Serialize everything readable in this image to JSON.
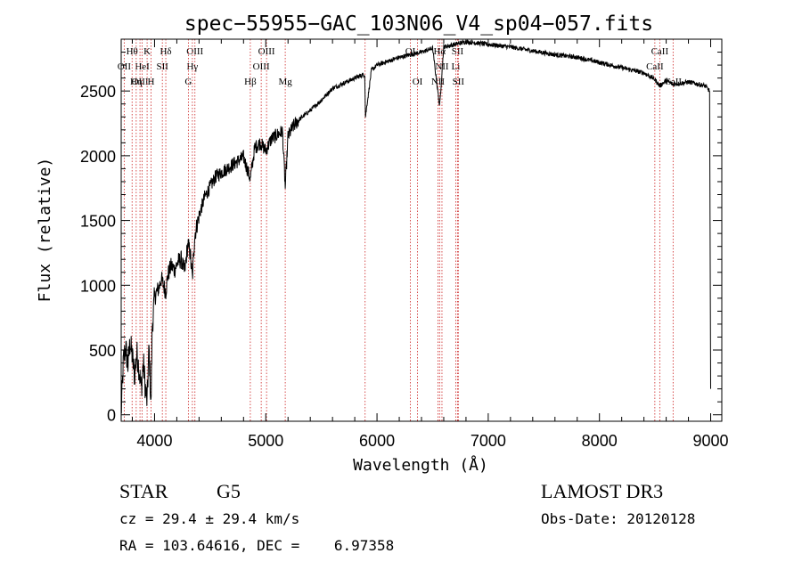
{
  "chart_data": {
    "type": "line",
    "title": "spec−55955−GAC_103N06_V4_sp04−057.fits",
    "xlabel": "Wavelength (Å)",
    "ylabel": "Flux (relative)",
    "xlim": [
      3700,
      9100
    ],
    "ylim": [
      -50,
      2900
    ],
    "grid": false,
    "x_ticks": [
      4000,
      5000,
      6000,
      7000,
      8000,
      9000
    ],
    "x_tick_labels": [
      "4000",
      "5000",
      "6000",
      "7000",
      "8000",
      "9000"
    ],
    "y_ticks": [
      0,
      500,
      1000,
      1500,
      2000,
      2500
    ],
    "y_tick_labels": [
      "0",
      "500",
      "1000",
      "1500",
      "2000",
      "2500"
    ],
    "series": [
      {
        "name": "flux",
        "x": [
          3700,
          3720,
          3740,
          3760,
          3780,
          3800,
          3820,
          3840,
          3860,
          3880,
          3900,
          3920,
          3933,
          3950,
          3968,
          3980,
          4000,
          4020,
          4040,
          4060,
          4080,
          4101,
          4120,
          4150,
          4180,
          4210,
          4240,
          4270,
          4300,
          4320,
          4340,
          4360,
          4400,
          4450,
          4500,
          4550,
          4600,
          4650,
          4700,
          4750,
          4800,
          4861,
          4900,
          4950,
          5000,
          5050,
          5100,
          5150,
          5175,
          5200,
          5250,
          5300,
          5400,
          5500,
          5600,
          5700,
          5800,
          5890,
          5896,
          5950,
          6000,
          6100,
          6200,
          6300,
          6400,
          6500,
          6563,
          6600,
          6700,
          6800,
          6900,
          7000,
          7200,
          7400,
          7600,
          7800,
          8000,
          8200,
          8400,
          8498,
          8542,
          8600,
          8662,
          8800,
          8950,
          8990,
          9000
        ],
        "y": [
          0,
          420,
          520,
          380,
          560,
          450,
          300,
          480,
          360,
          200,
          400,
          180,
          100,
          520,
          60,
          700,
          900,
          950,
          980,
          1050,
          1000,
          950,
          1080,
          1150,
          1120,
          1180,
          1200,
          1100,
          1320,
          1250,
          1050,
          1380,
          1540,
          1680,
          1760,
          1840,
          1870,
          1900,
          1930,
          1960,
          1990,
          1820,
          2060,
          2100,
          2040,
          2130,
          2160,
          2190,
          1750,
          2150,
          2230,
          2280,
          2350,
          2430,
          2520,
          2560,
          2600,
          2630,
          2300,
          2660,
          2700,
          2730,
          2760,
          2780,
          2800,
          2830,
          2380,
          2840,
          2860,
          2880,
          2870,
          2860,
          2840,
          2810,
          2780,
          2760,
          2720,
          2680,
          2640,
          2590,
          2540,
          2580,
          2550,
          2570,
          2540,
          2500,
          200
        ]
      }
    ],
    "lines": [
      {
        "label": "Hθ",
        "wl": 3798,
        "row": 0
      },
      {
        "label": "OII",
        "wl": 3727,
        "row": 1
      },
      {
        "label": "OIII",
        "wl": 3869,
        "row": 2
      },
      {
        "label": "K",
        "wl": 3933,
        "row": 0
      },
      {
        "label": "HeI",
        "wl": 3889,
        "row": 1
      },
      {
        "label": "Hη",
        "wl": 3835,
        "row": 2
      },
      {
        "label": "Hδ",
        "wl": 4101,
        "row": 0
      },
      {
        "label": "SII",
        "wl": 4070,
        "row": 1
      },
      {
        "label": "H",
        "wl": 3968,
        "row": 2
      },
      {
        "label": "OIII",
        "wl": 4363,
        "row": 0
      },
      {
        "label": "Hγ",
        "wl": 4340,
        "row": 1
      },
      {
        "label": "G",
        "wl": 4304,
        "row": 2
      },
      {
        "label": "Hβ",
        "wl": 4861,
        "row": 2
      },
      {
        "label": "OIII",
        "wl": 5007,
        "row": 0
      },
      {
        "label": "OIII",
        "wl": 4959,
        "row": 1
      },
      {
        "label": "Mg",
        "wl": 5175,
        "row": 2
      },
      {
        "label": "",
        "wl": 5893,
        "row": 0
      },
      {
        "label": "OI",
        "wl": 6300,
        "row": 0
      },
      {
        "label": "OI",
        "wl": 6364,
        "row": 2
      },
      {
        "label": "Hα",
        "wl": 6563,
        "row": 0
      },
      {
        "label": "SII",
        "wl": 6724,
        "row": 0
      },
      {
        "label": "NII",
        "wl": 6584,
        "row": 1
      },
      {
        "label": "Li",
        "wl": 6708,
        "row": 1
      },
      {
        "label": "NII",
        "wl": 6548,
        "row": 2
      },
      {
        "label": "SII",
        "wl": 6731,
        "row": 2
      },
      {
        "label": "CaII",
        "wl": 8542,
        "row": 0
      },
      {
        "label": "CaII",
        "wl": 8498,
        "row": 1
      },
      {
        "label": "CaII",
        "wl": 8662,
        "row": 2
      }
    ]
  },
  "info": {
    "class": "STAR",
    "subclass": "G5",
    "survey": "LAMOST DR3",
    "cz": "cz = 29.4 ± 29.4 km/s",
    "obs_date": "Obs-Date: 20120128",
    "coords": "RA = 103.64616, DEC =    6.97358"
  },
  "colors": {
    "line": "#000000",
    "marker": "#cc2222",
    "text": "#000000"
  }
}
